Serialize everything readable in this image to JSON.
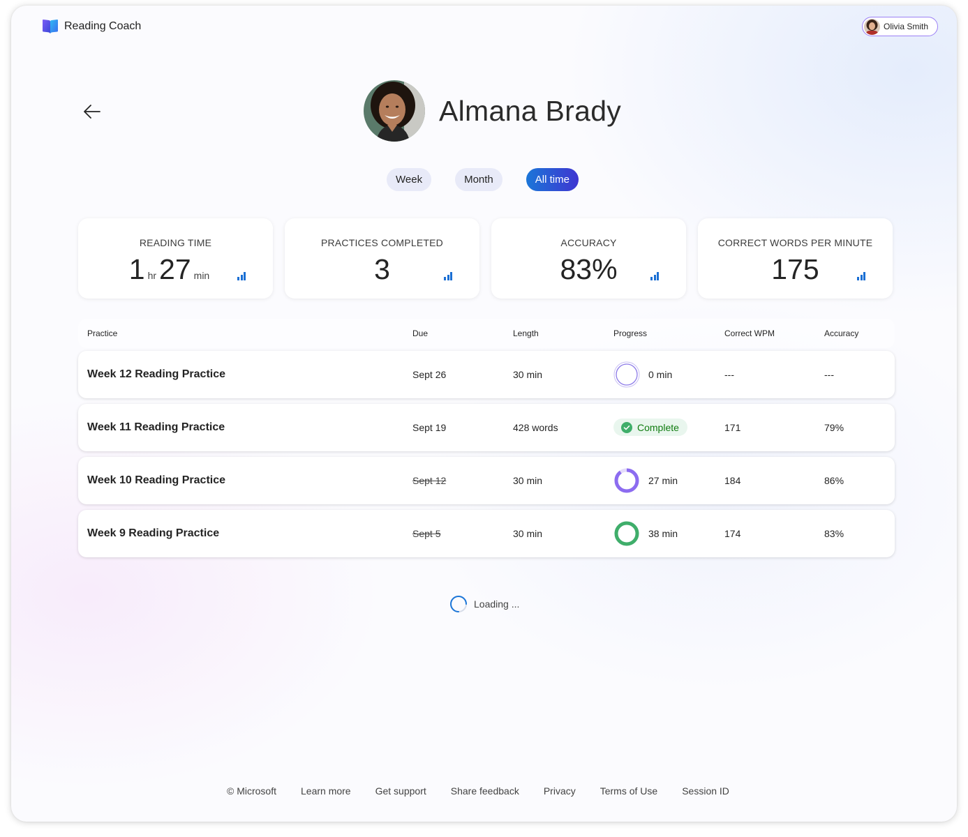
{
  "app": {
    "title": "Reading Coach"
  },
  "user": {
    "name": "Olivia Smith"
  },
  "student": {
    "name": "Almana Brady"
  },
  "filters": [
    {
      "label": "Week",
      "active": false
    },
    {
      "label": "Month",
      "active": false
    },
    {
      "label": "All time",
      "active": true
    }
  ],
  "stats": {
    "reading_time": {
      "label": "READING TIME",
      "hours": "1",
      "hours_unit": "hr",
      "minutes": "27",
      "minutes_unit": "min"
    },
    "practices_completed": {
      "label": "PRACTICES COMPLETED",
      "value": "3"
    },
    "accuracy": {
      "label": "ACCURACY",
      "value": "83%"
    },
    "cwpm": {
      "label": "CORRECT WORDS PER MINUTE",
      "value": "175"
    }
  },
  "table": {
    "headers": {
      "practice": "Practice",
      "due": "Due",
      "length": "Length",
      "progress": "Progress",
      "wpm": "Correct WPM",
      "accuracy": "Accuracy"
    },
    "rows": [
      {
        "practice": "Week 12 Reading Practice",
        "due": "Sept 26",
        "length": "30 min",
        "progress": "0 min",
        "progress_fraction": 0,
        "wpm": "---",
        "accuracy": "---"
      },
      {
        "practice": "Week 11 Reading Practice",
        "due": "Sept 19",
        "length": "428 words",
        "progress": "Complete",
        "wpm": "171",
        "accuracy": "79%"
      },
      {
        "practice": "Week 10 Reading Practice",
        "due": "Sept 12",
        "length": "30 min",
        "progress": "27 min",
        "progress_fraction": 0.9,
        "wpm": "184",
        "accuracy": "86%"
      },
      {
        "practice": "Week 9 Reading Practice",
        "due": "Sept 5",
        "length": "30 min",
        "progress": "38 min",
        "progress_fraction": 1,
        "wpm": "174",
        "accuracy": "83%"
      }
    ]
  },
  "loading_text": "Loading ...",
  "footer": {
    "copyright": "© Microsoft",
    "learn_more": "Learn more",
    "support": "Get support",
    "feedback": "Share feedback",
    "privacy": "Privacy",
    "terms": "Terms of Use",
    "session": "Session ID"
  },
  "colors": {
    "accent": "#1b76d8",
    "accent_end": "#3f35d1",
    "purple_ring": "#9b7ff5",
    "green": "#3fae6a",
    "success_text": "#107c10"
  }
}
